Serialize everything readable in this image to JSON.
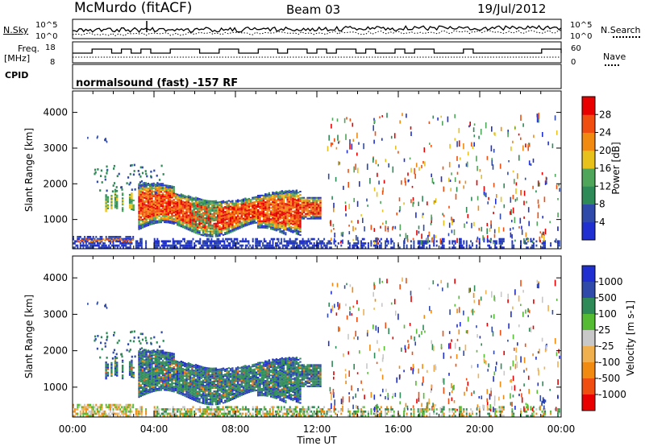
{
  "header": {
    "title": "McMurdo (fitACF)",
    "beam": "Beam 03",
    "date": "19/Jul/2012",
    "info": "normalsound (fast) -157 RF"
  },
  "top_panels": {
    "nsky_label": "N.Sky",
    "nsky_ticks": [
      "10^5",
      "10^0"
    ],
    "nsearch_label": "N.Search",
    "nsearch_ticks": [
      "10^5",
      "10^0"
    ],
    "freq_label_line1": "Freq.",
    "freq_label_line2": "[MHz]",
    "freq_ticks": [
      "18",
      "8"
    ],
    "nave_label": "Nave",
    "nave_ticks": [
      "60",
      "0"
    ],
    "cpid_label": "CPID"
  },
  "colors": {
    "power": [
      "#1f2fd0",
      "#2f4aa8",
      "#2e8b57",
      "#4fa55a",
      "#e8c21a",
      "#f08a10",
      "#f04e10",
      "#e80000"
    ],
    "velocity": [
      "#e80000",
      "#f04e10",
      "#f08a10",
      "#f0b050",
      "#c8c8c8",
      "#55bb33",
      "#2e8b57",
      "#2f4aa8",
      "#1f2fd0"
    ]
  },
  "chart_data": [
    {
      "type": "heatmap",
      "title": "",
      "xlabel": "Time UT",
      "ylabel": "Slant Range [km]",
      "x_ticks": [
        "00:00",
        "04:00",
        "08:00",
        "12:00",
        "16:00",
        "20:00",
        "00:00"
      ],
      "y_ticks": [
        1000,
        2000,
        3000,
        4000
      ],
      "ylim": [
        180,
        4600
      ],
      "colorbar": {
        "label": "Power [dB]",
        "ticks": [
          4,
          8,
          12,
          16,
          20,
          24,
          28
        ],
        "range": [
          0,
          32
        ]
      },
      "features": [
        {
          "name": "main echo",
          "t_start": 3.2,
          "t_end": 12.2,
          "range_min": 600,
          "range_max": 1900,
          "value": "16-30 dB"
        },
        {
          "name": "ground scatter",
          "t_start": 0.0,
          "t_end": 24.0,
          "range_min": 180,
          "range_max": 500,
          "value": "4-12 dB"
        }
      ]
    },
    {
      "type": "heatmap",
      "title": "",
      "xlabel": "Time UT",
      "ylabel": "Slant Range [km]",
      "x_ticks": [
        "00:00",
        "04:00",
        "08:00",
        "12:00",
        "16:00",
        "20:00",
        "00:00"
      ],
      "y_ticks": [
        1000,
        2000,
        3000,
        4000
      ],
      "ylim": [
        180,
        4600
      ],
      "colorbar": {
        "label": "Velocity [m s-1]",
        "ticks": [
          1000,
          500,
          100,
          25,
          -25,
          -100,
          -500,
          -1000
        ]
      },
      "features": [
        {
          "name": "main echo",
          "t_start": 3.2,
          "t_end": 12.2,
          "range_min": 600,
          "range_max": 1900,
          "value": "+100 to +1000 m/s"
        }
      ]
    }
  ]
}
